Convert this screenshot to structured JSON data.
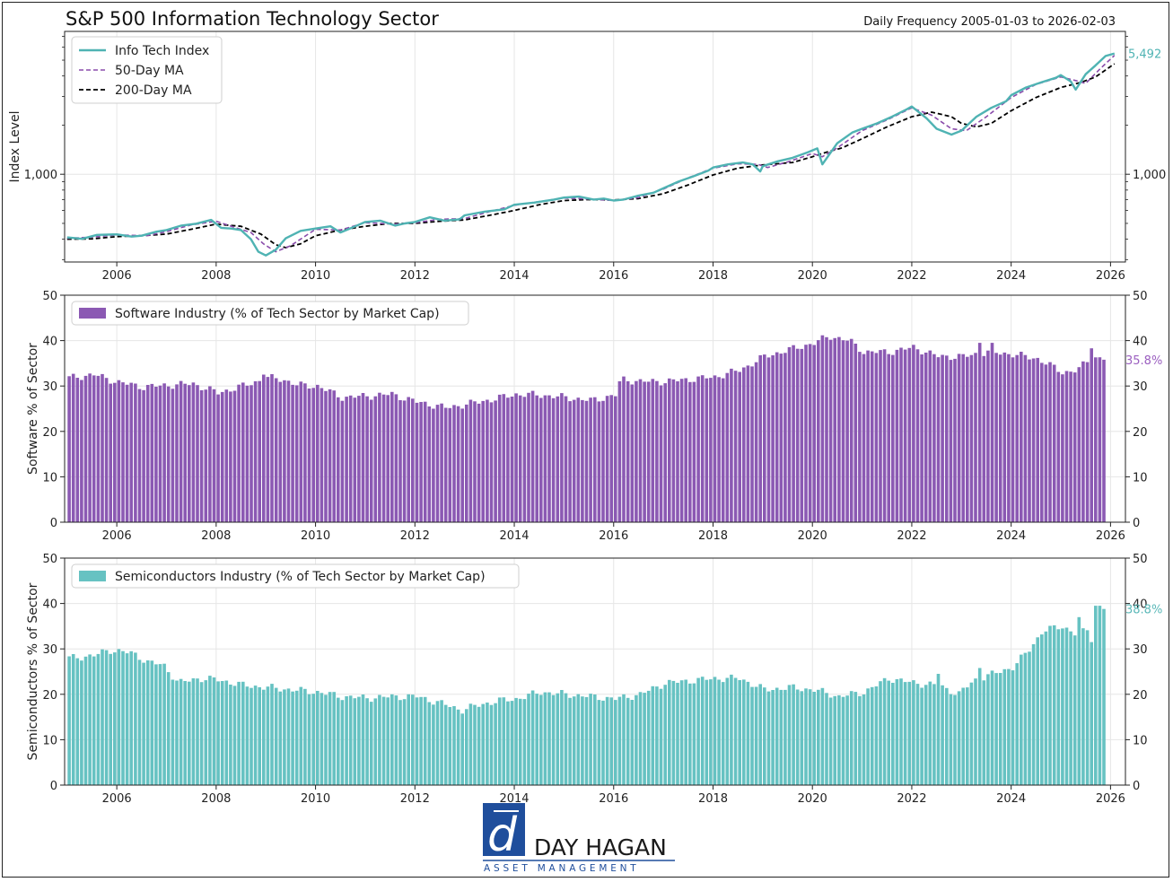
{
  "header": {
    "title": "S&P 500 Information Technology Sector",
    "subtitle": "Daily Frequency 2005-01-03 to 2026-02-03"
  },
  "colors": {
    "index": "#4fb3b3",
    "ma50": "#8a4cab",
    "ma200": "#000000",
    "software": "#8b59b3",
    "semis": "#66c2c2",
    "software_label": "#9b5fc0",
    "semis_label": "#5ab8b8",
    "logo_blue": "#1f4e9c"
  },
  "logo": {
    "monogram": "d",
    "name": "DAY HAGAN",
    "tagline": "ASSET MANAGEMENT"
  },
  "chart_data": [
    {
      "type": "line",
      "ylabel": "Index Level",
      "yscale": "log",
      "ylim": [
        290,
        7500
      ],
      "xlim": [
        2004.95,
        2026.3
      ],
      "yticks": [
        1000
      ],
      "ytick_labels": [
        "1,000"
      ],
      "xticks": [
        "2006",
        "2008",
        "2010",
        "2012",
        "2014",
        "2016",
        "2018",
        "2020",
        "2022",
        "2024",
        "2026"
      ],
      "last_value_label": "5,492",
      "legend": "top-left",
      "grid": true,
      "series": [
        {
          "name": "Info Tech Index",
          "style": "solid",
          "x": [
            2005.0,
            2005.3,
            2005.6,
            2006.0,
            2006.3,
            2006.5,
            2006.8,
            2007.0,
            2007.3,
            2007.6,
            2007.9,
            2008.1,
            2008.3,
            2008.5,
            2008.7,
            2008.85,
            2009.0,
            2009.2,
            2009.4,
            2009.7,
            2010.0,
            2010.3,
            2010.5,
            2010.8,
            2011.0,
            2011.3,
            2011.6,
            2011.8,
            2012.0,
            2012.3,
            2012.6,
            2012.9,
            2013.0,
            2013.4,
            2013.8,
            2014.0,
            2014.4,
            2014.8,
            2015.0,
            2015.3,
            2015.6,
            2015.8,
            2016.0,
            2016.2,
            2016.5,
            2016.8,
            2017.0,
            2017.3,
            2017.6,
            2017.9,
            2018.0,
            2018.3,
            2018.6,
            2018.8,
            2018.95,
            2019.0,
            2019.3,
            2019.6,
            2019.9,
            2020.1,
            2020.2,
            2020.5,
            2020.8,
            2021.0,
            2021.3,
            2021.6,
            2021.9,
            2022.0,
            2022.3,
            2022.5,
            2022.8,
            2023.0,
            2023.3,
            2023.6,
            2023.9,
            2024.0,
            2024.3,
            2024.6,
            2024.9,
            2025.0,
            2025.2,
            2025.3,
            2025.5,
            2025.7,
            2025.9,
            2026.08
          ],
          "values": [
            410,
            402,
            425,
            428,
            415,
            420,
            445,
            455,
            485,
            498,
            525,
            470,
            465,
            455,
            400,
            335,
            318,
            345,
            405,
            450,
            465,
            480,
            440,
            480,
            510,
            520,
            485,
            500,
            510,
            545,
            520,
            530,
            560,
            590,
            610,
            650,
            670,
            700,
            720,
            730,
            700,
            710,
            690,
            700,
            740,
            770,
            820,
            900,
            970,
            1050,
            1100,
            1150,
            1180,
            1150,
            1040,
            1120,
            1200,
            1260,
            1360,
            1440,
            1150,
            1550,
            1800,
            1900,
            2050,
            2250,
            2500,
            2600,
            2200,
            1900,
            1750,
            1850,
            2250,
            2550,
            2800,
            3050,
            3400,
            3650,
            3900,
            4050,
            3700,
            3300,
            4100,
            4650,
            5300,
            5492
          ]
        },
        {
          "name": "50-Day MA",
          "style": "dashed",
          "x": [
            2005.0,
            2005.5,
            2006.0,
            2006.6,
            2007.0,
            2007.5,
            2008.0,
            2008.4,
            2008.7,
            2008.95,
            2009.2,
            2009.5,
            2010.0,
            2010.5,
            2011.0,
            2011.6,
            2012.0,
            2012.5,
            2013.0,
            2013.5,
            2014.0,
            2014.5,
            2015.0,
            2015.5,
            2016.0,
            2016.5,
            2017.0,
            2017.5,
            2018.0,
            2018.5,
            2018.9,
            2019.1,
            2019.5,
            2020.0,
            2020.2,
            2020.5,
            2021.0,
            2021.5,
            2022.0,
            2022.4,
            2022.8,
            2023.1,
            2023.5,
            2024.0,
            2024.5,
            2025.0,
            2025.3,
            2025.5,
            2025.8,
            2026.08
          ],
          "values": [
            405,
            412,
            425,
            420,
            445,
            490,
            515,
            470,
            440,
            375,
            335,
            365,
            460,
            455,
            505,
            495,
            505,
            530,
            535,
            590,
            645,
            680,
            715,
            705,
            690,
            720,
            810,
            950,
            1090,
            1160,
            1150,
            1100,
            1190,
            1340,
            1280,
            1450,
            1850,
            2150,
            2550,
            2300,
            1900,
            1850,
            2250,
            2950,
            3550,
            3950,
            3750,
            3600,
            4450,
            5350
          ]
        },
        {
          "name": "200-Day MA",
          "style": "dashed",
          "x": [
            2005.0,
            2005.5,
            2006.0,
            2006.5,
            2007.0,
            2007.5,
            2008.0,
            2008.5,
            2008.9,
            2009.2,
            2009.4,
            2009.7,
            2010.0,
            2010.5,
            2011.0,
            2011.5,
            2012.0,
            2012.5,
            2013.0,
            2013.5,
            2014.0,
            2014.5,
            2015.0,
            2015.5,
            2016.0,
            2016.5,
            2017.0,
            2017.5,
            2018.0,
            2018.5,
            2019.0,
            2019.3,
            2019.6,
            2020.0,
            2020.3,
            2020.6,
            2021.0,
            2021.5,
            2022.0,
            2022.4,
            2022.8,
            2023.0,
            2023.3,
            2023.6,
            2024.0,
            2024.5,
            2025.0,
            2025.4,
            2025.7,
            2026.08
          ],
          "values": [
            400,
            402,
            415,
            420,
            430,
            460,
            495,
            480,
            430,
            370,
            355,
            375,
            420,
            455,
            480,
            500,
            500,
            515,
            525,
            560,
            600,
            650,
            690,
            700,
            695,
            710,
            760,
            860,
            990,
            1090,
            1140,
            1160,
            1180,
            1280,
            1370,
            1450,
            1650,
            1950,
            2250,
            2400,
            2250,
            2050,
            1950,
            2050,
            2450,
            2950,
            3400,
            3650,
            3950,
            4750
          ]
        }
      ]
    },
    {
      "type": "bar",
      "ylabel": "Software % of Sector",
      "ylim": [
        0,
        50
      ],
      "yticks": [
        0,
        10,
        20,
        30,
        40,
        50
      ],
      "xlim": [
        2004.95,
        2026.3
      ],
      "xticks": [
        "2006",
        "2008",
        "2010",
        "2012",
        "2014",
        "2016",
        "2018",
        "2020",
        "2022",
        "2024",
        "2026"
      ],
      "last_value_label": "35.8%",
      "legend": "top-left",
      "grid": true,
      "series": [
        {
          "name": "Software Industry (% of Tech Sector by Market Cap)"
        }
      ],
      "knots": [
        [
          2005.0,
          31.8
        ],
        [
          2005.5,
          32.5
        ],
        [
          2006.0,
          30.8
        ],
        [
          2006.5,
          29.8
        ],
        [
          2007.0,
          30.2
        ],
        [
          2007.5,
          30.5
        ],
        [
          2008.0,
          28.5
        ],
        [
          2008.5,
          30.0
        ],
        [
          2009.0,
          31.8
        ],
        [
          2009.3,
          31.5
        ],
        [
          2009.6,
          30.2
        ],
        [
          2010.0,
          30.0
        ],
        [
          2010.5,
          27.5
        ],
        [
          2011.0,
          27.8
        ],
        [
          2011.5,
          28.2
        ],
        [
          2012.0,
          26.5
        ],
        [
          2012.6,
          25.2
        ],
        [
          2013.0,
          26.0
        ],
        [
          2013.5,
          27.0
        ],
        [
          2014.0,
          28.2
        ],
        [
          2014.5,
          28.0
        ],
        [
          2015.0,
          27.5
        ],
        [
          2015.5,
          26.8
        ],
        [
          2016.0,
          28.0
        ],
        [
          2016.1,
          31.5
        ],
        [
          2016.5,
          31.0
        ],
        [
          2017.0,
          31.0
        ],
        [
          2017.5,
          31.5
        ],
        [
          2018.0,
          32.0
        ],
        [
          2018.5,
          33.5
        ],
        [
          2019.0,
          36.5
        ],
        [
          2019.5,
          38.0
        ],
        [
          2020.0,
          39.5
        ],
        [
          2020.3,
          41.0
        ],
        [
          2020.7,
          40.0
        ],
        [
          2021.0,
          37.5
        ],
        [
          2021.5,
          37.5
        ],
        [
          2022.0,
          38.5
        ],
        [
          2022.5,
          36.5
        ],
        [
          2023.0,
          36.5
        ],
        [
          2023.5,
          37.5
        ],
        [
          2024.0,
          37.0
        ],
        [
          2024.5,
          36.0
        ],
        [
          2025.0,
          33.0
        ],
        [
          2025.3,
          33.5
        ],
        [
          2025.6,
          36.5
        ],
        [
          2025.85,
          35.8
        ]
      ],
      "spikes": [
        [
          2023.3,
          39.5
        ],
        [
          2023.6,
          39.5
        ],
        [
          2025.6,
          38.3
        ],
        [
          2008.9,
          32.5
        ]
      ],
      "bar_step_years": 0.0833
    },
    {
      "type": "bar",
      "ylabel": "Semiconductors % of Sector",
      "ylim": [
        0,
        50
      ],
      "yticks": [
        0,
        10,
        20,
        30,
        40,
        50
      ],
      "xlim": [
        2004.95,
        2026.3
      ],
      "xticks": [
        "2006",
        "2008",
        "2010",
        "2012",
        "2014",
        "2016",
        "2018",
        "2020",
        "2022",
        "2024",
        "2026"
      ],
      "last_value_label": "38.8%",
      "legend": "top-left",
      "grid": true,
      "series": [
        {
          "name": "Semiconductors Industry (% of Tech Sector by Market Cap)"
        }
      ],
      "knots": [
        [
          2005.0,
          28.0
        ],
        [
          2005.5,
          28.5
        ],
        [
          2005.8,
          29.8
        ],
        [
          2006.3,
          29.0
        ],
        [
          2006.6,
          27.0
        ],
        [
          2006.9,
          26.5
        ],
        [
          2007.2,
          22.5
        ],
        [
          2007.6,
          23.5
        ],
        [
          2008.0,
          23.2
        ],
        [
          2008.5,
          22.0
        ],
        [
          2009.0,
          21.5
        ],
        [
          2009.5,
          21.0
        ],
        [
          2010.0,
          20.5
        ],
        [
          2010.5,
          19.5
        ],
        [
          2011.0,
          19.2
        ],
        [
          2011.5,
          19.5
        ],
        [
          2012.0,
          19.5
        ],
        [
          2012.5,
          18.0
        ],
        [
          2012.9,
          16.5
        ],
        [
          2013.2,
          17.5
        ],
        [
          2013.6,
          18.5
        ],
        [
          2014.0,
          19.0
        ],
        [
          2014.5,
          20.5
        ],
        [
          2015.0,
          20.0
        ],
        [
          2015.5,
          19.5
        ],
        [
          2016.0,
          19.0
        ],
        [
          2016.5,
          20.0
        ],
        [
          2017.0,
          22.5
        ],
        [
          2017.5,
          23.0
        ],
        [
          2018.0,
          23.5
        ],
        [
          2018.5,
          23.5
        ],
        [
          2019.0,
          21.0
        ],
        [
          2019.5,
          21.5
        ],
        [
          2020.0,
          21.0
        ],
        [
          2020.5,
          19.5
        ],
        [
          2021.0,
          20.5
        ],
        [
          2021.5,
          23.5
        ],
        [
          2022.0,
          22.5
        ],
        [
          2022.5,
          22.0
        ],
        [
          2022.9,
          20.0
        ],
        [
          2023.2,
          23.0
        ],
        [
          2023.6,
          24.5
        ],
        [
          2024.0,
          26.0
        ],
        [
          2024.3,
          29.5
        ],
        [
          2024.6,
          34.0
        ],
        [
          2025.0,
          35.0
        ],
        [
          2025.3,
          33.0
        ],
        [
          2025.6,
          35.0
        ],
        [
          2025.85,
          38.8
        ]
      ],
      "spikes": [
        [
          2022.5,
          24.5
        ],
        [
          2023.3,
          25.8
        ],
        [
          2025.35,
          37.0
        ],
        [
          2025.7,
          39.5
        ],
        [
          2025.55,
          32.0
        ],
        [
          2025.6,
          31.5
        ]
      ],
      "bar_step_years": 0.0833
    }
  ]
}
